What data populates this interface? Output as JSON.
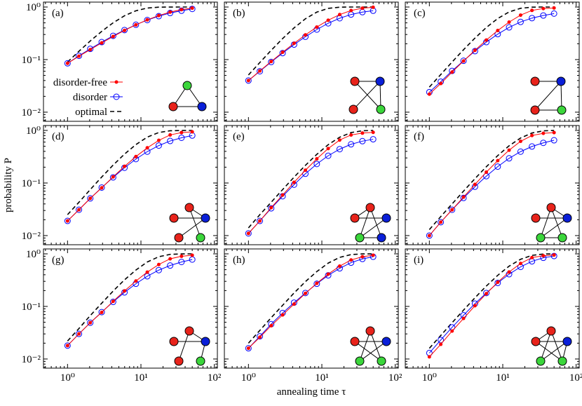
{
  "chart_data": [
    {
      "type": "line",
      "label": "(a)",
      "xscale": "log",
      "yscale": "log",
      "xlim": [
        0.47,
        110
      ],
      "ylim": [
        0.0067,
        1.24
      ],
      "yticks": [
        {
          "value": 0.01,
          "label": "10⁻²"
        },
        {
          "value": 0.1,
          "label": "10⁻¹"
        },
        {
          "value": 1,
          "label": "10⁰"
        }
      ],
      "x": [
        1,
        1.43,
        2.04,
        2.92,
        4.18,
        5.97,
        8.54,
        12.2,
        17.5,
        25,
        35.7,
        50
      ],
      "series": [
        {
          "name": "disorder-free",
          "color": "#ff0000",
          "marker": "filled",
          "linestyle": "solid",
          "values": [
            0.085,
            0.116,
            0.155,
            0.208,
            0.275,
            0.359,
            0.458,
            0.57,
            0.688,
            0.8,
            0.892,
            0.951
          ]
        },
        {
          "name": "disorder",
          "color": "#0000ff",
          "marker": "open",
          "linestyle": "solid",
          "values": [
            0.085,
            0.118,
            0.16,
            0.215,
            0.283,
            0.365,
            0.46,
            0.565,
            0.67,
            0.77,
            0.85,
            0.92
          ]
        },
        {
          "name": "optimal",
          "color": "#000000",
          "marker": "none",
          "linestyle": "dashed",
          "values": [
            0.09,
            0.144,
            0.226,
            0.344,
            0.501,
            0.682,
            0.849,
            0.955,
            0.994,
            0.999,
            1,
            1
          ]
        }
      ]
    },
    {
      "type": "line",
      "label": "(b)",
      "xscale": "log",
      "yscale": "log",
      "xlim": [
        0.47,
        110
      ],
      "ylim": [
        0.0067,
        1.24
      ],
      "x": [
        1,
        1.43,
        2.04,
        2.92,
        4.18,
        5.97,
        8.54,
        12.2,
        17.5,
        25,
        35.7,
        50
      ],
      "series": [
        {
          "color": "#ff0000",
          "marker": "filled",
          "linestyle": "solid",
          "values": [
            0.04,
            0.061,
            0.092,
            0.138,
            0.204,
            0.295,
            0.416,
            0.561,
            0.718,
            0.857,
            0.95,
            0.989
          ]
        },
        {
          "color": "#0000ff",
          "marker": "open",
          "linestyle": "solid",
          "values": [
            0.04,
            0.06,
            0.09,
            0.133,
            0.193,
            0.272,
            0.373,
            0.49,
            0.612,
            0.72,
            0.8,
            0.85
          ]
        },
        {
          "color": "#000000",
          "marker": "none",
          "linestyle": "dashed",
          "values": [
            0.051,
            0.088,
            0.15,
            0.251,
            0.401,
            0.597,
            0.8,
            0.942,
            0.994,
            1,
            1,
            1
          ]
        }
      ]
    },
    {
      "type": "line",
      "label": "(c)",
      "xscale": "log",
      "yscale": "log",
      "xlim": [
        0.47,
        110
      ],
      "ylim": [
        0.0067,
        1.24
      ],
      "x": [
        1,
        1.43,
        2.04,
        2.92,
        4.18,
        5.97,
        8.54,
        12.2,
        17.5,
        25,
        35.7,
        50
      ],
      "series": [
        {
          "color": "#ff0000",
          "marker": "filled",
          "linestyle": "solid",
          "values": [
            0.022,
            0.035,
            0.058,
            0.094,
            0.15,
            0.235,
            0.357,
            0.517,
            0.701,
            0.863,
            0.935,
            0.96
          ]
        },
        {
          "color": "#0000ff",
          "marker": "open",
          "linestyle": "solid",
          "values": [
            0.024,
            0.038,
            0.061,
            0.095,
            0.145,
            0.215,
            0.305,
            0.41,
            0.52,
            0.615,
            0.69,
            0.75
          ]
        },
        {
          "color": "#000000",
          "marker": "none",
          "linestyle": "dashed",
          "values": [
            0.03,
            0.052,
            0.09,
            0.154,
            0.256,
            0.408,
            0.604,
            0.806,
            0.946,
            0.994,
            1,
            1
          ]
        }
      ]
    },
    {
      "type": "line",
      "label": "(d)",
      "ylabel": "probability P",
      "xscale": "log",
      "yscale": "log",
      "xlim": [
        0.47,
        110
      ],
      "ylim": [
        0.0067,
        1.24
      ],
      "yticks": [
        {
          "value": 0.01,
          "label": "10⁻²"
        },
        {
          "value": 0.1,
          "label": "10⁻¹"
        },
        {
          "value": 1,
          "label": "10⁰"
        }
      ],
      "x": [
        1,
        1.43,
        2.04,
        2.92,
        4.18,
        5.97,
        8.54,
        12.2,
        17.5,
        25,
        35.7,
        50
      ],
      "series": [
        {
          "color": "#ff0000",
          "marker": "filled",
          "linestyle": "solid",
          "values": [
            0.019,
            0.031,
            0.051,
            0.081,
            0.131,
            0.207,
            0.318,
            0.467,
            0.647,
            0.821,
            0.91,
            0.94
          ]
        },
        {
          "color": "#0000ff",
          "marker": "open",
          "linestyle": "solid",
          "values": [
            0.019,
            0.031,
            0.051,
            0.082,
            0.128,
            0.195,
            0.285,
            0.395,
            0.515,
            0.63,
            0.725,
            0.8
          ]
        },
        {
          "color": "#000000",
          "marker": "none",
          "linestyle": "dashed",
          "values": [
            0.025,
            0.043,
            0.075,
            0.13,
            0.219,
            0.355,
            0.538,
            0.746,
            0.912,
            0.986,
            0.999,
            1
          ]
        }
      ]
    },
    {
      "type": "line",
      "label": "(e)",
      "xscale": "log",
      "yscale": "log",
      "xlim": [
        0.47,
        110
      ],
      "ylim": [
        0.0067,
        1.24
      ],
      "x": [
        1,
        1.43,
        2.04,
        2.92,
        4.18,
        5.97,
        8.54,
        12.2,
        17.5,
        25,
        35.7,
        50
      ],
      "series": [
        {
          "color": "#ff0000",
          "marker": "filled",
          "linestyle": "solid",
          "values": [
            0.011,
            0.019,
            0.034,
            0.059,
            0.103,
            0.175,
            0.288,
            0.452,
            0.656,
            0.82,
            0.89,
            0.92
          ]
        },
        {
          "color": "#0000ff",
          "marker": "open",
          "linestyle": "solid",
          "values": [
            0.011,
            0.019,
            0.033,
            0.056,
            0.093,
            0.15,
            0.23,
            0.33,
            0.44,
            0.545,
            0.625,
            0.68
          ]
        },
        {
          "color": "#000000",
          "marker": "none",
          "linestyle": "dashed",
          "values": [
            0.014,
            0.025,
            0.043,
            0.075,
            0.129,
            0.217,
            0.351,
            0.535,
            0.743,
            0.91,
            0.986,
            0.999
          ]
        }
      ]
    },
    {
      "type": "line",
      "label": "(f)",
      "xscale": "log",
      "yscale": "log",
      "xlim": [
        0.47,
        110
      ],
      "ylim": [
        0.0067,
        1.24
      ],
      "x": [
        1,
        1.43,
        2.04,
        2.92,
        4.18,
        5.97,
        8.54,
        12.2,
        17.5,
        25,
        35.7,
        50
      ],
      "series": [
        {
          "color": "#ff0000",
          "marker": "filled",
          "linestyle": "solid",
          "values": [
            0.01,
            0.018,
            0.031,
            0.054,
            0.094,
            0.161,
            0.266,
            0.421,
            0.621,
            0.8,
            0.88,
            0.91
          ]
        },
        {
          "color": "#0000ff",
          "marker": "open",
          "linestyle": "solid",
          "values": [
            0.01,
            0.018,
            0.031,
            0.052,
            0.085,
            0.135,
            0.205,
            0.295,
            0.395,
            0.495,
            0.58,
            0.65
          ]
        },
        {
          "color": "#000000",
          "marker": "none",
          "linestyle": "dashed",
          "values": [
            0.013,
            0.023,
            0.04,
            0.07,
            0.121,
            0.204,
            0.332,
            0.51,
            0.718,
            0.893,
            0.981,
            0.999
          ]
        }
      ]
    },
    {
      "type": "line",
      "label": "(g)",
      "xscale": "log",
      "yscale": "log",
      "xlim": [
        0.47,
        110
      ],
      "ylim": [
        0.0067,
        1.24
      ],
      "yticks": [
        {
          "value": 0.01,
          "label": "10⁻²"
        },
        {
          "value": 0.1,
          "label": "10⁻¹"
        },
        {
          "value": 1,
          "label": "10⁰"
        }
      ],
      "xticks": [
        {
          "value": 1,
          "label": "10⁰"
        },
        {
          "value": 10,
          "label": "10¹"
        },
        {
          "value": 100,
          "label": "10²"
        }
      ],
      "x": [
        1,
        1.43,
        2.04,
        2.92,
        4.18,
        5.97,
        8.54,
        12.2,
        17.5,
        25,
        35.7,
        50
      ],
      "series": [
        {
          "color": "#ff0000",
          "marker": "filled",
          "linestyle": "solid",
          "values": [
            0.018,
            0.03,
            0.049,
            0.077,
            0.125,
            0.197,
            0.304,
            0.449,
            0.627,
            0.804,
            0.9,
            0.94
          ]
        },
        {
          "color": "#0000ff",
          "marker": "open",
          "linestyle": "solid",
          "values": [
            0.018,
            0.03,
            0.049,
            0.078,
            0.122,
            0.185,
            0.27,
            0.375,
            0.49,
            0.6,
            0.7,
            0.78
          ]
        },
        {
          "color": "#000000",
          "marker": "none",
          "linestyle": "dashed",
          "values": [
            0.022,
            0.038,
            0.067,
            0.115,
            0.196,
            0.32,
            0.492,
            0.7,
            0.881,
            0.977,
            0.998,
            1
          ]
        }
      ]
    },
    {
      "type": "line",
      "label": "(h)",
      "xlabel": "annealing time τ",
      "xscale": "log",
      "yscale": "log",
      "xlim": [
        0.47,
        110
      ],
      "ylim": [
        0.0067,
        1.24
      ],
      "xticks": [
        {
          "value": 1,
          "label": "10⁰"
        },
        {
          "value": 10,
          "label": "10¹"
        },
        {
          "value": 100,
          "label": "10²"
        }
      ],
      "x": [
        1,
        1.43,
        2.04,
        2.92,
        4.18,
        5.97,
        8.54,
        12.2,
        17.5,
        25,
        35.7,
        50
      ],
      "series": [
        {
          "color": "#ff0000",
          "marker": "filled",
          "linestyle": "solid",
          "values": [
            0.016,
            0.026,
            0.043,
            0.069,
            0.111,
            0.177,
            0.275,
            0.411,
            0.584,
            0.765,
            0.88,
            0.94
          ]
        },
        {
          "color": "#0000ff",
          "marker": "open",
          "linestyle": "solid",
          "values": [
            0.016,
            0.027,
            0.046,
            0.075,
            0.118,
            0.18,
            0.27,
            0.39,
            0.53,
            0.68,
            0.8,
            0.88
          ]
        },
        {
          "color": "#000000",
          "marker": "none",
          "linestyle": "dashed",
          "values": [
            0.02,
            0.035,
            0.061,
            0.105,
            0.18,
            0.296,
            0.46,
            0.666,
            0.856,
            0.968,
            0.997,
            1
          ]
        }
      ]
    },
    {
      "type": "line",
      "label": "(i)",
      "xscale": "log",
      "yscale": "log",
      "xlim": [
        0.47,
        110
      ],
      "ylim": [
        0.0067,
        1.24
      ],
      "xticks": [
        {
          "value": 1,
          "label": "10⁰"
        },
        {
          "value": 10,
          "label": "10¹"
        },
        {
          "value": 100,
          "label": "10²"
        }
      ],
      "x": [
        1,
        1.43,
        2.04,
        2.92,
        4.18,
        5.97,
        8.54,
        12.2,
        17.5,
        25,
        35.7,
        50
      ],
      "series": [
        {
          "color": "#ff0000",
          "marker": "filled",
          "linestyle": "solid",
          "values": [
            0.011,
            0.019,
            0.034,
            0.059,
            0.103,
            0.175,
            0.288,
            0.452,
            0.656,
            0.849,
            0.92,
            0.95
          ]
        },
        {
          "color": "#0000ff",
          "marker": "open",
          "linestyle": "solid",
          "values": [
            0.013,
            0.023,
            0.04,
            0.068,
            0.113,
            0.18,
            0.28,
            0.41,
            0.565,
            0.72,
            0.84,
            0.91
          ]
        },
        {
          "color": "#000000",
          "marker": "none",
          "linestyle": "dashed",
          "values": [
            0.016,
            0.028,
            0.049,
            0.085,
            0.146,
            0.244,
            0.39,
            0.583,
            0.788,
            0.936,
            0.992,
            1
          ]
        }
      ]
    }
  ]
}
